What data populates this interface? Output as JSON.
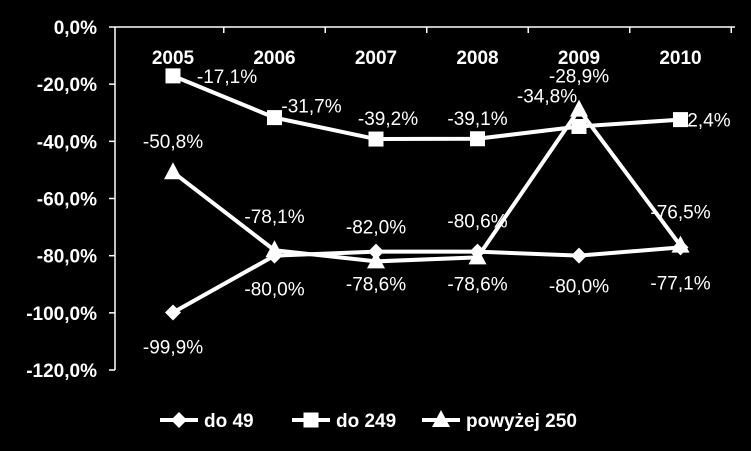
{
  "chart_data": {
    "type": "line",
    "title": "",
    "xlabel": "",
    "ylabel": "",
    "categories": [
      "2005",
      "2006",
      "2007",
      "2008",
      "2009",
      "2010"
    ],
    "ylim": [
      -120,
      0
    ],
    "yticks": [
      "0,0%",
      "-20,0%",
      "-40,0%",
      "-60,0%",
      "-80,0%",
      "-100,0%",
      "-120,0%"
    ],
    "grid": "horizontal-at-category-axis-only",
    "legend_position": "bottom",
    "series": [
      {
        "name": "do 49",
        "marker": "diamond",
        "color": "#ffffff",
        "values": [
          -99.9,
          -80.0,
          -78.6,
          -78.6,
          -80.0,
          -77.1
        ],
        "labels": [
          "-99,9%",
          "-80,0%",
          "-78,6%",
          "-78,6%",
          "-80,0%",
          "-77,1%"
        ]
      },
      {
        "name": "do 249",
        "marker": "square",
        "color": "#ffffff",
        "values": [
          -17.1,
          -31.7,
          -39.2,
          -39.1,
          -34.8,
          -32.4
        ],
        "labels": [
          "-17,1%",
          "-31,7%",
          "-39,2%",
          "-39,1%",
          "-34,8%",
          "-32,4%"
        ]
      },
      {
        "name": "powyżej 250",
        "marker": "triangle",
        "color": "#ffffff",
        "values": [
          -50.8,
          -78.1,
          -82.0,
          -80.6,
          -28.9,
          -76.5
        ],
        "labels": [
          "-50,8%",
          "-78,1%",
          "-82,0%",
          "-80,6%",
          "-28,9%",
          "-76,5%"
        ]
      }
    ]
  }
}
